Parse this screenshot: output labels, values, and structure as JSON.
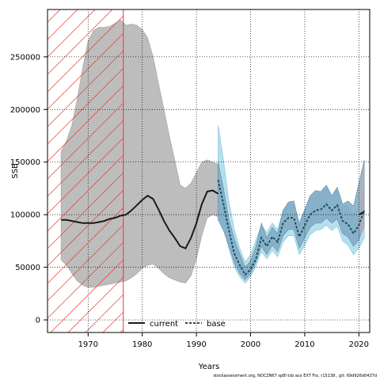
{
  "chart_data": {
    "type": "line",
    "xlabel": "Years",
    "ylabel": "SSB",
    "xlim": [
      1962.5,
      2022
    ],
    "ylim": [
      -12000,
      295000
    ],
    "x_ticks": [
      1970,
      1980,
      1990,
      2000,
      2010,
      2020
    ],
    "y_ticks": [
      0,
      50000,
      100000,
      150000,
      200000,
      250000
    ],
    "grid": true,
    "legend": "bottom",
    "excluded_period": {
      "from": 1962.5,
      "to": 1976.5
    },
    "colors": {
      "current_band": "#bdbdbd",
      "current_line": "#1a1a1a",
      "base_band_dark": "#7fa9c2",
      "base_band_light": "#a9d9ea",
      "base_line": "#1b4f5e",
      "hatch": "#e53935",
      "grid": "#000000"
    },
    "series": [
      {
        "name": "current",
        "x": [
          1965,
          1966,
          1967,
          1968,
          1969,
          1970,
          1971,
          1972,
          1973,
          1974,
          1975,
          1976,
          1977,
          1978,
          1979,
          1980,
          1981,
          1982,
          1983,
          1984,
          1985,
          1986,
          1987,
          1988,
          1989,
          1990,
          1991,
          1992,
          1993,
          1994,
          2020,
          2021
        ],
        "values": [
          95000,
          95000,
          94000,
          93000,
          92000,
          92000,
          92000,
          93000,
          94000,
          96000,
          97000,
          99000,
          100000,
          104000,
          109000,
          114000,
          118000,
          115000,
          105000,
          94000,
          85000,
          78000,
          70000,
          68000,
          78000,
          92000,
          110000,
          122000,
          123000,
          120000,
          100000,
          103000
        ],
        "lower": [
          57000,
          52000,
          44000,
          37000,
          33000,
          31000,
          31000,
          32000,
          33000,
          34000,
          35000,
          36000,
          37000,
          40000,
          44000,
          49000,
          52000,
          53000,
          49000,
          44000,
          40000,
          38000,
          36000,
          35000,
          42000,
          58000,
          80000,
          97000,
          100000,
          98000,
          80000,
          85000
        ],
        "upper": [
          160000,
          170000,
          185000,
          210000,
          240000,
          265000,
          275000,
          278000,
          278000,
          279000,
          282000,
          285000,
          280000,
          281000,
          280000,
          276000,
          268000,
          250000,
          225000,
          200000,
          175000,
          152000,
          128000,
          125000,
          130000,
          140000,
          150000,
          152000,
          150000,
          148000,
          125000,
          148000
        ]
      },
      {
        "name": "base",
        "x": [
          1994,
          1995,
          1996,
          1997,
          1998,
          1999,
          2000,
          2001,
          2002,
          2003,
          2004,
          2005,
          2006,
          2007,
          2008,
          2009,
          2010,
          2011,
          2012,
          2013,
          2014,
          2015,
          2016,
          2017,
          2018,
          2019,
          2020,
          2021
        ],
        "values": [
          133000,
          110000,
          85000,
          63000,
          52000,
          43000,
          48000,
          58000,
          78000,
          70000,
          79000,
          74000,
          92000,
          97000,
          97000,
          79000,
          90000,
          100000,
          104000,
          105000,
          110000,
          104000,
          109000,
          94000,
          91000,
          82000,
          90000,
          104000
        ],
        "lower_dark": [
          95000,
          85000,
          70000,
          54000,
          44000,
          38000,
          44000,
          55000,
          70000,
          62000,
          71000,
          65000,
          80000,
          86000,
          86000,
          68000,
          78000,
          88000,
          92000,
          92000,
          97000,
          92000,
          96000,
          82000,
          79000,
          70000,
          76000,
          90000
        ],
        "upper_dark": [
          150000,
          125000,
          95000,
          77000,
          63000,
          50000,
          56000,
          70000,
          92000,
          78000,
          88000,
          82000,
          104000,
          112000,
          113000,
          90000,
          105000,
          118000,
          123000,
          122000,
          128000,
          118000,
          126000,
          110000,
          113000,
          108000,
          130000,
          152000
        ],
        "lower_light": [
          97000,
          86000,
          68000,
          50000,
          41000,
          35000,
          41000,
          51000,
          65000,
          58000,
          66000,
          60000,
          74000,
          80000,
          80000,
          62000,
          71000,
          81000,
          85000,
          86000,
          90000,
          85000,
          89000,
          75000,
          71000,
          62000,
          68000,
          78000
        ],
        "upper_light": [
          185000,
          152000,
          112000,
          86000,
          68000,
          55000,
          62000,
          76000,
          90000,
          83000,
          92000,
          86000,
          104000,
          110000,
          110000,
          93000,
          105000,
          116000,
          120000,
          122000,
          126000,
          118000,
          124000,
          108000,
          108000,
          100000,
          108000,
          120000
        ]
      }
    ],
    "footer": "stockassessment.org,  NOCZN67  sp8I  tsb  aco  EXT  Ftx,  r15138 ,  git:  69d926d0437d"
  }
}
